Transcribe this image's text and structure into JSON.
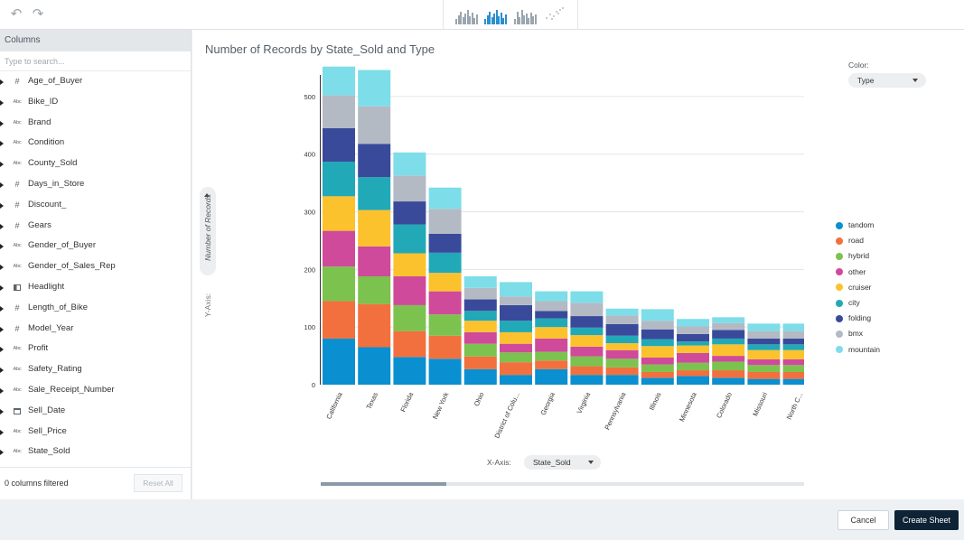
{
  "toolbar": {
    "undo_icon": "undo-icon",
    "redo_icon": "redo-icon",
    "chart_type_icons": [
      "bar-chart-icon",
      "stacked-bar-chart-icon",
      "grouped-bar-chart-icon",
      "scatter-chart-icon"
    ],
    "selected_chart_type": 1
  },
  "sidebar": {
    "header": "Columns",
    "search_placeholder": "Type to search...",
    "columns": [
      {
        "type": "#",
        "name": "Age_of_Buyer"
      },
      {
        "type": "Abc",
        "name": "Bike_ID"
      },
      {
        "type": "Abc",
        "name": "Brand"
      },
      {
        "type": "Abc",
        "name": "Condition"
      },
      {
        "type": "Abc",
        "name": "County_Sold"
      },
      {
        "type": "#",
        "name": "Days_in_Store"
      },
      {
        "type": "#",
        "name": "Discount_"
      },
      {
        "type": "#",
        "name": "Gears"
      },
      {
        "type": "Abc",
        "name": "Gender_of_Buyer"
      },
      {
        "type": "Abc",
        "name": "Gender_of_Sales_Rep"
      },
      {
        "type": "bool",
        "name": "Headlight"
      },
      {
        "type": "#",
        "name": "Length_of_Bike"
      },
      {
        "type": "#",
        "name": "Model_Year"
      },
      {
        "type": "Abc",
        "name": "Profit"
      },
      {
        "type": "Abc",
        "name": "Safety_Rating"
      },
      {
        "type": "Abc",
        "name": "Sale_Receipt_Number"
      },
      {
        "type": "date",
        "name": "Sell_Date"
      },
      {
        "type": "Abc",
        "name": "Sell_Price"
      },
      {
        "type": "Abc",
        "name": "State_Sold"
      }
    ],
    "filtered_text": "0 columns filtered",
    "reset_label": "Reset All"
  },
  "main": {
    "color_label": "Color:",
    "color_value": "Type",
    "y_axis_label": "Y-Axis:",
    "y_axis_value": "Number of Records",
    "x_axis_label": "X-Axis:",
    "x_axis_value": "State_Sold",
    "scroll_fraction": 0.26
  },
  "footer": {
    "cancel_label": "Cancel",
    "create_label": "Create Sheet"
  },
  "colors": {
    "tandom": "#0a8fd0",
    "road": "#f2703d",
    "hybrid": "#7cc24f",
    "other": "#cf4a9a",
    "cruiser": "#fbc22e",
    "city": "#22a9b7",
    "folding": "#3a4a9a",
    "bmx": "#b4bac4",
    "mountain": "#7ddde9"
  },
  "chart_data": {
    "type": "bar",
    "stacked": true,
    "title": "Number of Records by State_Sold and Type",
    "xlabel": "State_Sold",
    "ylabel": "Number of Records",
    "ylim": [
      0,
      550
    ],
    "yticks": [
      0,
      100,
      200,
      300,
      400,
      500
    ],
    "grid": true,
    "legend_position": "right",
    "categories": [
      "California",
      "Texas",
      "Florida",
      "New York",
      "Ohio",
      "District of Colu...",
      "Georgia",
      "Virginia",
      "Pennsylvania",
      "Illinois",
      "Minnesota",
      "Colorado",
      "Missouri",
      "North C..."
    ],
    "series": [
      {
        "name": "tandom",
        "values": [
          80,
          65,
          48,
          45,
          27,
          17,
          27,
          17,
          17,
          12,
          15,
          12,
          10,
          10
        ]
      },
      {
        "name": "road",
        "values": [
          65,
          75,
          45,
          40,
          22,
          22,
          15,
          15,
          13,
          10,
          10,
          13,
          12,
          12
        ]
      },
      {
        "name": "hybrid",
        "values": [
          60,
          48,
          45,
          37,
          22,
          17,
          15,
          17,
          15,
          13,
          13,
          15,
          12,
          12
        ]
      },
      {
        "name": "other",
        "values": [
          62,
          52,
          50,
          40,
          20,
          15,
          23,
          17,
          15,
          12,
          17,
          10,
          10,
          10
        ]
      },
      {
        "name": "cruiser",
        "values": [
          60,
          63,
          40,
          32,
          20,
          20,
          20,
          20,
          12,
          20,
          13,
          20,
          16,
          16
        ]
      },
      {
        "name": "city",
        "values": [
          60,
          57,
          50,
          35,
          17,
          20,
          15,
          13,
          13,
          12,
          7,
          10,
          10,
          10
        ]
      },
      {
        "name": "folding",
        "values": [
          58,
          58,
          40,
          33,
          20,
          27,
          13,
          20,
          20,
          17,
          13,
          15,
          10,
          10
        ]
      },
      {
        "name": "bmx",
        "values": [
          57,
          65,
          45,
          43,
          20,
          15,
          17,
          23,
          15,
          15,
          13,
          12,
          13,
          13
        ]
      },
      {
        "name": "mountain",
        "values": [
          50,
          63,
          40,
          37,
          20,
          25,
          17,
          20,
          12,
          20,
          13,
          10,
          13,
          13
        ]
      }
    ]
  }
}
